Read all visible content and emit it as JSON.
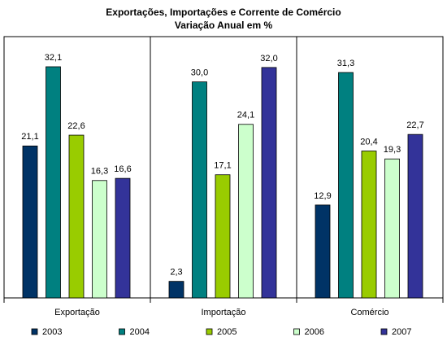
{
  "chart_data": {
    "type": "bar",
    "title": "Exportações, Importações e Corrente de Comércio",
    "subtitle": "Variação Anual em %",
    "categories": [
      "Exportação",
      "Importação",
      "Comércio"
    ],
    "series": [
      {
        "name": "2003",
        "color": "#003366",
        "values": [
          21.1,
          2.3,
          12.9
        ],
        "value_labels": [
          "21,1",
          "2,3",
          "12,9"
        ]
      },
      {
        "name": "2004",
        "color": "#008080",
        "values": [
          32.1,
          30.0,
          31.3
        ],
        "value_labels": [
          "32,1",
          "30,0",
          "31,3"
        ]
      },
      {
        "name": "2005",
        "color": "#99cc00",
        "values": [
          22.6,
          17.1,
          20.4
        ],
        "value_labels": [
          "22,6",
          "17,1",
          "20,4"
        ]
      },
      {
        "name": "2006",
        "color": "#ccffcc",
        "values": [
          16.3,
          24.1,
          19.3
        ],
        "value_labels": [
          "16,3",
          "24,1",
          "19,3"
        ]
      },
      {
        "name": "2007",
        "color": "#333399",
        "values": [
          16.6,
          32.0,
          22.7
        ],
        "value_labels": [
          "16,6",
          "32,0",
          "22,7"
        ]
      }
    ]
  }
}
